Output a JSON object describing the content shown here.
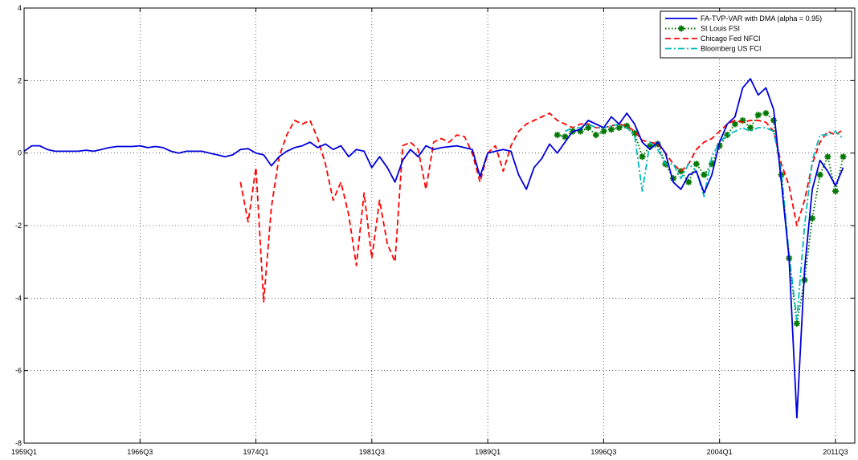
{
  "chart_data": {
    "type": "line",
    "title": "",
    "xlabel": "",
    "ylabel": "",
    "grid": true,
    "legend_position": "top-right",
    "xlim": [
      "1959Q1",
      "2012Q4"
    ],
    "ylim": [
      -8,
      4
    ],
    "y_ticks": [
      -8,
      -6,
      -4,
      -2,
      0,
      2,
      4
    ],
    "x_ticks": [
      "1959Q1",
      "1966Q3",
      "1974Q1",
      "1981Q3",
      "1989Q1",
      "1996Q3",
      "2004Q1",
      "2011Q3"
    ],
    "series": [
      {
        "name": "FA-TVP-VAR with DMA (alpha = 0.95)",
        "color": "#0000dd",
        "style": "solid",
        "marker": "none",
        "points": [
          [
            "1959Q1",
            0.05
          ],
          [
            "1959Q3",
            0.2
          ],
          [
            "1960Q1",
            0.2
          ],
          [
            "1960Q3",
            0.1
          ],
          [
            "1961Q1",
            0.05
          ],
          [
            "1962Q1",
            0.05
          ],
          [
            "1962Q3",
            0.05
          ],
          [
            "1963Q1",
            0.08
          ],
          [
            "1963Q3",
            0.05
          ],
          [
            "1964Q1",
            0.1
          ],
          [
            "1964Q3",
            0.15
          ],
          [
            "1965Q1",
            0.18
          ],
          [
            "1966Q1",
            0.18
          ],
          [
            "1966Q3",
            0.2
          ],
          [
            "1967Q1",
            0.15
          ],
          [
            "1967Q3",
            0.18
          ],
          [
            "1968Q1",
            0.15
          ],
          [
            "1968Q3",
            0.05
          ],
          [
            "1969Q1",
            0.0
          ],
          [
            "1969Q3",
            0.05
          ],
          [
            "1970Q1",
            0.05
          ],
          [
            "1970Q3",
            0.05
          ],
          [
            "1971Q1",
            0.0
          ],
          [
            "1971Q3",
            -0.05
          ],
          [
            "1972Q1",
            -0.1
          ],
          [
            "1972Q3",
            -0.05
          ],
          [
            "1973Q1",
            0.1
          ],
          [
            "1973Q3",
            0.12
          ],
          [
            "1974Q1",
            0.0
          ],
          [
            "1974Q3",
            -0.05
          ],
          [
            "1975Q1",
            -0.35
          ],
          [
            "1975Q3",
            -0.1
          ],
          [
            "1976Q1",
            0.05
          ],
          [
            "1976Q3",
            0.15
          ],
          [
            "1977Q1",
            0.2
          ],
          [
            "1977Q3",
            0.3
          ],
          [
            "1978Q1",
            0.15
          ],
          [
            "1978Q3",
            0.25
          ],
          [
            "1979Q1",
            0.1
          ],
          [
            "1979Q3",
            0.2
          ],
          [
            "1980Q1",
            -0.1
          ],
          [
            "1980Q3",
            0.1
          ],
          [
            "1981Q1",
            0.05
          ],
          [
            "1981Q3",
            -0.4
          ],
          [
            "1982Q1",
            -0.1
          ],
          [
            "1982Q3",
            -0.4
          ],
          [
            "1983Q1",
            -0.8
          ],
          [
            "1983Q3",
            -0.2
          ],
          [
            "1984Q1",
            0.1
          ],
          [
            "1984Q3",
            -0.1
          ],
          [
            "1985Q1",
            0.2
          ],
          [
            "1985Q3",
            0.1
          ],
          [
            "1986Q1",
            0.15
          ],
          [
            "1987Q1",
            0.2
          ],
          [
            "1987Q3",
            0.15
          ],
          [
            "1988Q1",
            0.1
          ],
          [
            "1988Q3",
            -0.65
          ],
          [
            "1989Q1",
            0.0
          ],
          [
            "1989Q3",
            0.05
          ],
          [
            "1990Q1",
            0.1
          ],
          [
            "1990Q3",
            0.05
          ],
          [
            "1991Q1",
            -0.6
          ],
          [
            "1991Q3",
            -1.0
          ],
          [
            "1992Q1",
            -0.4
          ],
          [
            "1992Q3",
            -0.15
          ],
          [
            "1993Q1",
            0.25
          ],
          [
            "1993Q3",
            0.0
          ],
          [
            "1994Q1",
            0.3
          ],
          [
            "1994Q3",
            0.6
          ],
          [
            "1995Q1",
            0.65
          ],
          [
            "1995Q3",
            0.9
          ],
          [
            "1996Q1",
            0.8
          ],
          [
            "1996Q3",
            0.7
          ],
          [
            "1997Q1",
            1.0
          ],
          [
            "1997Q3",
            0.8
          ],
          [
            "1998Q1",
            1.1
          ],
          [
            "1998Q3",
            0.8
          ],
          [
            "1999Q1",
            0.3
          ],
          [
            "1999Q3",
            0.1
          ],
          [
            "2000Q1",
            0.3
          ],
          [
            "2000Q3",
            0.0
          ],
          [
            "2001Q1",
            -0.8
          ],
          [
            "2001Q3",
            -1.0
          ],
          [
            "2002Q1",
            -0.6
          ],
          [
            "2002Q3",
            -0.5
          ],
          [
            "2003Q1",
            -1.1
          ],
          [
            "2003Q3",
            -0.6
          ],
          [
            "2004Q1",
            0.3
          ],
          [
            "2004Q3",
            0.8
          ],
          [
            "2005Q1",
            1.0
          ],
          [
            "2005Q3",
            1.8
          ],
          [
            "2006Q1",
            2.05
          ],
          [
            "2006Q3",
            1.6
          ],
          [
            "2007Q1",
            1.8
          ],
          [
            "2007Q3",
            1.2
          ],
          [
            "2008Q1",
            -0.8
          ],
          [
            "2008Q3",
            -2.9
          ],
          [
            "2009Q1",
            -7.3
          ],
          [
            "2009Q3",
            -3.2
          ],
          [
            "2010Q1",
            -1.0
          ],
          [
            "2010Q3",
            -0.2
          ],
          [
            "2011Q1",
            -0.5
          ],
          [
            "2011Q3",
            -0.9
          ],
          [
            "2012Q1",
            -0.4
          ]
        ]
      },
      {
        "name": "St Louis FSI",
        "color": "#007700",
        "style": "dotted",
        "marker": "star",
        "points": [
          [
            "1993Q3",
            0.5
          ],
          [
            "1994Q1",
            0.45
          ],
          [
            "1994Q3",
            0.6
          ],
          [
            "1995Q1",
            0.6
          ],
          [
            "1995Q3",
            0.7
          ],
          [
            "1996Q1",
            0.5
          ],
          [
            "1996Q3",
            0.6
          ],
          [
            "1997Q1",
            0.65
          ],
          [
            "1997Q3",
            0.7
          ],
          [
            "1998Q1",
            0.75
          ],
          [
            "1998Q3",
            0.55
          ],
          [
            "1999Q1",
            -0.1
          ],
          [
            "1999Q3",
            0.2
          ],
          [
            "2000Q1",
            0.25
          ],
          [
            "2000Q3",
            -0.3
          ],
          [
            "2001Q1",
            -0.7
          ],
          [
            "2001Q3",
            -0.5
          ],
          [
            "2002Q1",
            -0.8
          ],
          [
            "2002Q3",
            -0.3
          ],
          [
            "2003Q1",
            -0.6
          ],
          [
            "2003Q3",
            -0.3
          ],
          [
            "2004Q1",
            0.2
          ],
          [
            "2004Q3",
            0.5
          ],
          [
            "2005Q1",
            0.8
          ],
          [
            "2005Q3",
            0.9
          ],
          [
            "2006Q1",
            0.7
          ],
          [
            "2006Q3",
            1.05
          ],
          [
            "2007Q1",
            1.1
          ],
          [
            "2007Q3",
            0.9
          ],
          [
            "2008Q1",
            -0.6
          ],
          [
            "2008Q3",
            -2.9
          ],
          [
            "2009Q1",
            -4.7
          ],
          [
            "2009Q3",
            -3.5
          ],
          [
            "2010Q1",
            -1.8
          ],
          [
            "2010Q3",
            -0.6
          ],
          [
            "2011Q1",
            -0.1
          ],
          [
            "2011Q3",
            -1.05
          ],
          [
            "2012Q1",
            -0.1
          ]
        ]
      },
      {
        "name": "Chicago Fed NFCI",
        "color": "#ff0000",
        "style": "dashed",
        "marker": "none",
        "points": [
          [
            "1973Q1",
            -0.8
          ],
          [
            "1973Q3",
            -1.9
          ],
          [
            "1974Q1",
            -0.4
          ],
          [
            "1974Q3",
            -4.1
          ],
          [
            "1975Q1",
            -1.5
          ],
          [
            "1975Q3",
            -0.1
          ],
          [
            "1976Q1",
            0.5
          ],
          [
            "1976Q3",
            0.9
          ],
          [
            "1977Q1",
            0.8
          ],
          [
            "1977Q3",
            0.9
          ],
          [
            "1978Q1",
            0.4
          ],
          [
            "1978Q3",
            -0.3
          ],
          [
            "1979Q1",
            -1.3
          ],
          [
            "1979Q3",
            -0.8
          ],
          [
            "1980Q1",
            -1.7
          ],
          [
            "1980Q3",
            -3.1
          ],
          [
            "1981Q1",
            -1.1
          ],
          [
            "1981Q3",
            -2.9
          ],
          [
            "1982Q1",
            -1.3
          ],
          [
            "1982Q3",
            -2.5
          ],
          [
            "1983Q1",
            -3.0
          ],
          [
            "1983Q3",
            0.2
          ],
          [
            "1984Q1",
            0.3
          ],
          [
            "1984Q3",
            0.1
          ],
          [
            "1985Q1",
            -1.0
          ],
          [
            "1985Q3",
            0.3
          ],
          [
            "1986Q1",
            0.4
          ],
          [
            "1986Q3",
            0.3
          ],
          [
            "1987Q1",
            0.5
          ],
          [
            "1987Q3",
            0.45
          ],
          [
            "1988Q1",
            0.0
          ],
          [
            "1988Q3",
            -0.8
          ],
          [
            "1989Q1",
            0.0
          ],
          [
            "1989Q3",
            0.2
          ],
          [
            "1990Q1",
            -0.5
          ],
          [
            "1990Q3",
            0.2
          ],
          [
            "1991Q1",
            0.6
          ],
          [
            "1991Q3",
            0.8
          ],
          [
            "1992Q1",
            0.9
          ],
          [
            "1992Q3",
            1.0
          ],
          [
            "1993Q1",
            1.1
          ],
          [
            "1993Q3",
            0.9
          ],
          [
            "1994Q1",
            0.8
          ],
          [
            "1994Q3",
            0.7
          ],
          [
            "1995Q1",
            0.8
          ],
          [
            "1995Q3",
            0.8
          ],
          [
            "1996Q1",
            0.7
          ],
          [
            "1996Q3",
            0.7
          ],
          [
            "1997Q1",
            0.75
          ],
          [
            "1997Q3",
            0.8
          ],
          [
            "1998Q1",
            0.75
          ],
          [
            "1998Q3",
            0.6
          ],
          [
            "1999Q1",
            0.35
          ],
          [
            "1999Q3",
            0.3
          ],
          [
            "2000Q1",
            0.25
          ],
          [
            "2000Q3",
            0.0
          ],
          [
            "2001Q1",
            -0.3
          ],
          [
            "2001Q3",
            -0.5
          ],
          [
            "2002Q1",
            -0.3
          ],
          [
            "2002Q3",
            0.1
          ],
          [
            "2003Q1",
            0.3
          ],
          [
            "2003Q3",
            0.4
          ],
          [
            "2004Q1",
            0.6
          ],
          [
            "2004Q3",
            0.8
          ],
          [
            "2005Q1",
            0.9
          ],
          [
            "2005Q3",
            0.85
          ],
          [
            "2006Q1",
            0.9
          ],
          [
            "2006Q3",
            0.9
          ],
          [
            "2007Q1",
            0.85
          ],
          [
            "2007Q3",
            0.6
          ],
          [
            "2008Q1",
            -0.3
          ],
          [
            "2008Q3",
            -0.9
          ],
          [
            "2009Q1",
            -2.0
          ],
          [
            "2009Q3",
            -1.3
          ],
          [
            "2010Q1",
            -0.3
          ],
          [
            "2010Q3",
            0.3
          ],
          [
            "2011Q1",
            0.6
          ],
          [
            "2011Q3",
            0.5
          ],
          [
            "2012Q1",
            0.65
          ]
        ]
      },
      {
        "name": "Bloomberg US FCI",
        "color": "#00bbbb",
        "style": "dashdot",
        "marker": "none",
        "points": [
          [
            "1994Q1",
            0.6
          ],
          [
            "1994Q3",
            0.7
          ],
          [
            "1995Q1",
            0.7
          ],
          [
            "1995Q3",
            0.8
          ],
          [
            "1996Q1",
            0.7
          ],
          [
            "1996Q3",
            0.7
          ],
          [
            "1997Q1",
            0.75
          ],
          [
            "1997Q3",
            0.8
          ],
          [
            "1998Q1",
            0.7
          ],
          [
            "1998Q3",
            0.5
          ],
          [
            "1999Q1",
            -1.05
          ],
          [
            "1999Q3",
            0.3
          ],
          [
            "2000Q1",
            0.1
          ],
          [
            "2000Q3",
            -0.3
          ],
          [
            "2001Q1",
            -0.3
          ],
          [
            "2001Q3",
            -0.7
          ],
          [
            "2002Q1",
            -0.3
          ],
          [
            "2002Q3",
            -0.5
          ],
          [
            "2003Q1",
            -1.2
          ],
          [
            "2003Q3",
            -0.1
          ],
          [
            "2004Q1",
            0.3
          ],
          [
            "2004Q3",
            0.5
          ],
          [
            "2005Q1",
            0.6
          ],
          [
            "2005Q3",
            0.7
          ],
          [
            "2006Q1",
            0.6
          ],
          [
            "2006Q3",
            0.7
          ],
          [
            "2007Q1",
            0.7
          ],
          [
            "2007Q3",
            0.6
          ],
          [
            "2008Q1",
            -0.5
          ],
          [
            "2008Q3",
            -2.8
          ],
          [
            "2009Q1",
            -4.6
          ],
          [
            "2009Q3",
            -2.0
          ],
          [
            "2010Q1",
            -0.2
          ],
          [
            "2010Q3",
            0.5
          ],
          [
            "2011Q1",
            0.5
          ],
          [
            "2011Q3",
            0.6
          ],
          [
            "2012Q1",
            0.4
          ]
        ]
      }
    ]
  }
}
